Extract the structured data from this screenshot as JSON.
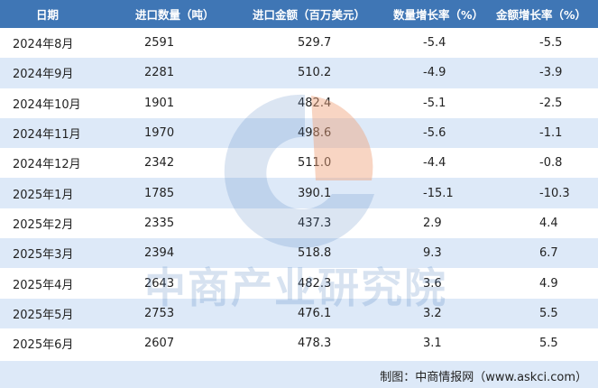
{
  "table": {
    "headers": [
      "日期",
      "进口数量（吨）",
      "进口金额（百万美元）",
      "数量增长率（%）",
      "金额增长率（%）"
    ],
    "rows": [
      [
        "2024年8月",
        "2591",
        "529.7",
        "-5.4",
        "-5.5"
      ],
      [
        "2024年9月",
        "2281",
        "510.2",
        "-4.9",
        "-3.9"
      ],
      [
        "2024年10月",
        "1901",
        "482.4",
        "-5.1",
        "-2.5"
      ],
      [
        "2024年11月",
        "1970",
        "498.6",
        "-5.6",
        "-1.1"
      ],
      [
        "2024年12月",
        "2342",
        "511.0",
        "-4.4",
        "-0.8"
      ],
      [
        "2025年1月",
        "1785",
        "390.1",
        "-15.1",
        "-10.3"
      ],
      [
        "2025年2月",
        "2335",
        "437.3",
        "2.9",
        "4.4"
      ],
      [
        "2025年3月",
        "2394",
        "518.8",
        "9.3",
        "6.7"
      ],
      [
        "2025年4月",
        "2643",
        "482.3",
        "3.6",
        "4.9"
      ],
      [
        "2025年5月",
        "2753",
        "476.1",
        "3.2",
        "5.5"
      ],
      [
        "2025年6月",
        "2607",
        "478.3",
        "3.1",
        "5.5"
      ]
    ]
  },
  "footer": {
    "source": "制图：中商情报网（www.askci.com）"
  },
  "watermark": {
    "text": "中商产业研究院",
    "logo": "askci-logo-icon"
  },
  "colors": {
    "header_bg": "#3f76b5",
    "stripe_bg": "#dde9f8",
    "logo_blue": "#4d7fc0",
    "logo_orange": "#f0a27a"
  }
}
